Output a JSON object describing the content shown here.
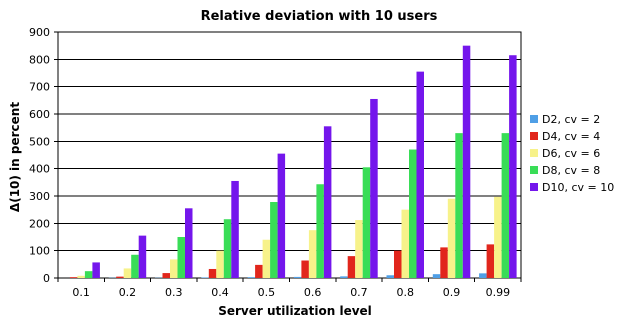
{
  "chart_data": {
    "type": "bar",
    "title": "Relative deviation with 10 users",
    "xlabel": "Server utilization level",
    "ylabel": "Δ(10) in percent",
    "categories": [
      "0.1",
      "0.2",
      "0.3",
      "0.4",
      "0.5",
      "0.6",
      "0.7",
      "0.8",
      "0.9",
      "0.99"
    ],
    "ylim": [
      0,
      900
    ],
    "yticks": [
      0,
      100,
      200,
      300,
      400,
      500,
      600,
      700,
      800,
      900
    ],
    "grid": true,
    "legend_position": "right",
    "series": [
      {
        "name": "D2, cv = 2",
        "color": "#4f9fe6",
        "values": [
          0,
          1,
          1,
          2,
          3,
          4,
          6,
          10,
          14,
          17
        ]
      },
      {
        "name": "D4, cv = 4",
        "color": "#e1261c",
        "values": [
          3,
          5,
          18,
          33,
          48,
          64,
          80,
          100,
          112,
          123
        ]
      },
      {
        "name": "D6, cv = 6",
        "color": "#f7f28a",
        "values": [
          8,
          35,
          68,
          100,
          140,
          175,
          212,
          250,
          290,
          297
        ]
      },
      {
        "name": "D8, cv = 8",
        "color": "#39dd57",
        "values": [
          25,
          85,
          150,
          215,
          278,
          343,
          405,
          470,
          530,
          530
        ]
      },
      {
        "name": "D10, cv = 10",
        "color": "#7416ec",
        "values": [
          57,
          155,
          255,
          355,
          455,
          555,
          655,
          755,
          850,
          815
        ]
      }
    ]
  }
}
